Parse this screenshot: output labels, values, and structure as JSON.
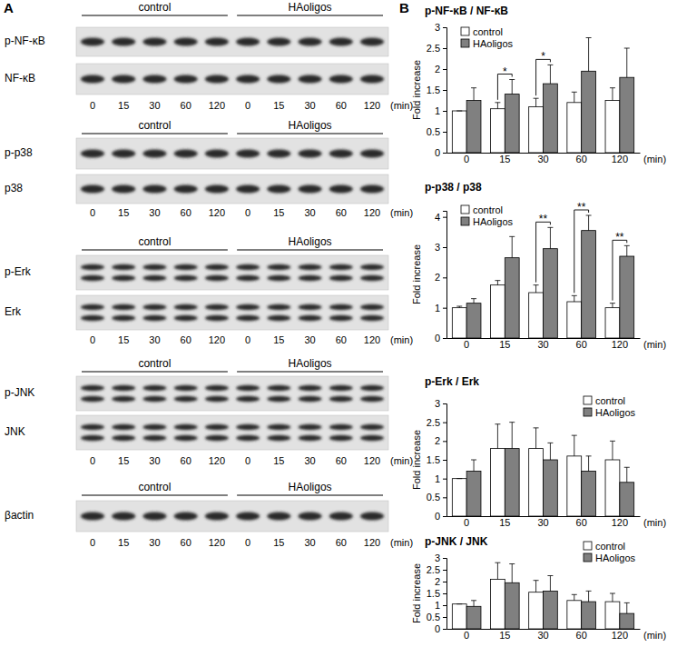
{
  "panel_a": {
    "label": "A",
    "groups": [
      "control",
      "HAoligos"
    ],
    "times": [
      "0",
      "15",
      "30",
      "60",
      "120"
    ],
    "time_unit": "(min)",
    "blots": [
      {
        "rows": [
          "p-NF-κB",
          "NF-κB"
        ]
      },
      {
        "rows": [
          "p-p38",
          "p38"
        ]
      },
      {
        "rows": [
          "p-Erk",
          "Erk"
        ]
      },
      {
        "rows": [
          "p-JNK",
          "JNK"
        ]
      },
      {
        "rows": [
          "βactin"
        ]
      }
    ]
  },
  "panel_b": {
    "label": "B"
  },
  "chart_data": [
    {
      "type": "bar",
      "title": "p-NF-κB / NF-κB",
      "ylabel": "Fold increase",
      "xlabel": "(min)",
      "categories": [
        "0",
        "15",
        "30",
        "60",
        "120"
      ],
      "series": [
        {
          "name": "control",
          "color": "#ffffff",
          "values": [
            1,
            1.05,
            1.1,
            1.2,
            1.25
          ],
          "errors": [
            0,
            0.15,
            0.2,
            0.25,
            0.3
          ]
        },
        {
          "name": "HAoligos",
          "color": "#808080",
          "values": [
            1.25,
            1.4,
            1.65,
            1.95,
            1.8
          ],
          "errors": [
            0.3,
            0.35,
            0.45,
            0.8,
            0.7
          ]
        }
      ],
      "ylim": [
        0,
        3
      ],
      "yticks": [
        0,
        0.5,
        1,
        1.5,
        2,
        2.5,
        3
      ],
      "legend": "upper left",
      "annotations": [
        {
          "x": "15",
          "text": "*"
        },
        {
          "x": "30",
          "text": "*"
        }
      ]
    },
    {
      "type": "bar",
      "title": "p-p38 / p38",
      "ylabel": "Fold increase",
      "xlabel": "(min)",
      "categories": [
        "0",
        "15",
        "30",
        "60",
        "120"
      ],
      "series": [
        {
          "name": "control",
          "color": "#ffffff",
          "values": [
            1,
            1.75,
            1.5,
            1.2,
            1.0
          ],
          "errors": [
            0.05,
            0.15,
            0.25,
            0.2,
            0.15
          ]
        },
        {
          "name": "HAoligos",
          "color": "#808080",
          "values": [
            1.15,
            2.65,
            2.95,
            3.55,
            2.7
          ],
          "errors": [
            0.15,
            0.7,
            0.7,
            0.5,
            0.35
          ]
        }
      ],
      "ylim": [
        0,
        4.2
      ],
      "yticks": [
        0,
        1,
        2,
        3,
        4
      ],
      "legend": "upper left",
      "annotations": [
        {
          "x": "30",
          "text": "**"
        },
        {
          "x": "60",
          "text": "**"
        },
        {
          "x": "120",
          "text": "**"
        }
      ]
    },
    {
      "type": "bar",
      "title": "p-Erk / Erk",
      "ylabel": "Fold increase",
      "xlabel": "(min)",
      "categories": [
        "0",
        "15",
        "30",
        "60",
        "120"
      ],
      "series": [
        {
          "name": "control",
          "color": "#ffffff",
          "values": [
            1,
            1.8,
            1.8,
            1.6,
            1.5
          ],
          "errors": [
            0,
            0.65,
            0.55,
            0.55,
            0.5
          ]
        },
        {
          "name": "HAoligos",
          "color": "#808080",
          "values": [
            1.2,
            1.8,
            1.5,
            1.2,
            0.9
          ],
          "errors": [
            0.3,
            0.7,
            0.45,
            0.4,
            0.4
          ]
        }
      ],
      "ylim": [
        0,
        3
      ],
      "yticks": [
        0,
        0.5,
        1,
        1.5,
        2,
        2.5,
        3
      ],
      "legend": "upper right"
    },
    {
      "type": "bar",
      "title": "p-JNK / JNK",
      "ylabel": "Fold increase",
      "xlabel": "(min)",
      "categories": [
        "0",
        "15",
        "30",
        "60",
        "120"
      ],
      "series": [
        {
          "name": "control",
          "color": "#ffffff",
          "values": [
            1.05,
            2.1,
            1.55,
            1.2,
            1.15
          ],
          "errors": [
            0,
            0.7,
            0.5,
            0.25,
            0.35
          ]
        },
        {
          "name": "HAoligos",
          "color": "#808080",
          "values": [
            0.95,
            1.95,
            1.6,
            1.15,
            0.65
          ],
          "errors": [
            0.25,
            0.8,
            0.65,
            0.45,
            0.45
          ]
        }
      ],
      "ylim": [
        0,
        3
      ],
      "yticks": [
        0,
        0.5,
        1,
        1.5,
        2,
        2.5,
        3
      ],
      "legend": "upper right"
    }
  ]
}
